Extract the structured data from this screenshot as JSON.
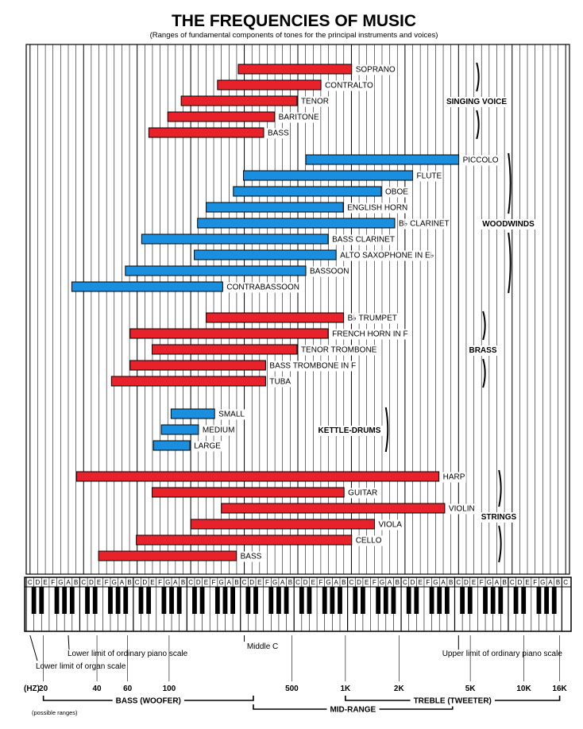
{
  "chart_data": {
    "type": "bar",
    "orientation": "horizontal-range",
    "title": "THE FREQUENCIES OF MUSIC",
    "subtitle": "(Ranges of fundamental components of tones for the principal instruments and voices)",
    "x_scale": "log",
    "x_unit": "(HZ)",
    "x_ticks": [
      {
        "value": 20,
        "label": "20"
      },
      {
        "value": 40,
        "label": "40"
      },
      {
        "value": 60,
        "label": "60"
      },
      {
        "value": 100,
        "label": "100"
      },
      {
        "value": 500,
        "label": "500"
      },
      {
        "value": 1000,
        "label": "1K"
      },
      {
        "value": 2000,
        "label": "2K"
      },
      {
        "value": 5000,
        "label": "5K"
      },
      {
        "value": 10000,
        "label": "10K"
      },
      {
        "value": 16000,
        "label": "16K"
      }
    ],
    "colors": {
      "red": "#e8222a",
      "blue": "#1a8fe0",
      "outline": "#000000"
    },
    "groups": [
      {
        "name": "SINGING VOICE",
        "instruments": [
          {
            "name": "SOPRANO",
            "low": 250,
            "high": 1050,
            "color": "red"
          },
          {
            "name": "CONTRALTO",
            "low": 185,
            "high": 700,
            "color": "red"
          },
          {
            "name": "TENOR",
            "low": 120,
            "high": 520,
            "color": "red"
          },
          {
            "name": "BARITONE",
            "low": 98,
            "high": 390,
            "color": "red"
          },
          {
            "name": "BASS",
            "low": 78,
            "high": 340,
            "color": "red"
          }
        ]
      },
      {
        "name": "WOODWINDS",
        "instruments": [
          {
            "name": "PICCOLO",
            "low": 590,
            "high": 4200,
            "color": "blue"
          },
          {
            "name": "FLUTE",
            "low": 260,
            "high": 2350,
            "color": "blue"
          },
          {
            "name": "OBOE",
            "low": 235,
            "high": 1550,
            "color": "blue"
          },
          {
            "name": "ENGLISH HORN",
            "low": 165,
            "high": 980,
            "color": "blue"
          },
          {
            "name": "B♭ CLARINET",
            "low": 145,
            "high": 1900,
            "color": "blue"
          },
          {
            "name": "BASS CLARINET",
            "low": 70,
            "high": 780,
            "color": "blue"
          },
          {
            "name": "ALTO SAXOPHONE IN E♭",
            "low": 138,
            "high": 880,
            "color": "blue"
          },
          {
            "name": "BASSOON",
            "low": 58,
            "high": 590,
            "color": "blue"
          },
          {
            "name": "CONTRABASSOON",
            "low": 29,
            "high": 200,
            "color": "blue"
          }
        ]
      },
      {
        "name": "BRASS",
        "instruments": [
          {
            "name": "B♭ TRUMPET",
            "low": 165,
            "high": 985,
            "color": "red"
          },
          {
            "name": "FRENCH HORN IN F",
            "low": 62,
            "high": 780,
            "color": "red"
          },
          {
            "name": "TENOR TROMBONE",
            "low": 82,
            "high": 520,
            "color": "red"
          },
          {
            "name": "BASS TROMBONE IN F",
            "low": 62,
            "high": 345,
            "color": "red"
          },
          {
            "name": "TUBA",
            "low": 47,
            "high": 345,
            "color": "red"
          }
        ]
      },
      {
        "name": "KETTLE-DRUMS",
        "instruments": [
          {
            "name": "SMALL",
            "low": 103,
            "high": 177,
            "color": "blue"
          },
          {
            "name": "MEDIUM",
            "low": 89,
            "high": 147,
            "color": "blue"
          },
          {
            "name": "LARGE",
            "low": 83,
            "high": 130,
            "color": "blue"
          }
        ]
      },
      {
        "name": "STRINGS",
        "instruments": [
          {
            "name": "HARP",
            "low": 31,
            "high": 3300,
            "color": "red"
          },
          {
            "name": "GUITAR",
            "low": 82,
            "high": 990,
            "color": "red"
          },
          {
            "name": "VIOLIN",
            "low": 196,
            "high": 3600,
            "color": "red"
          },
          {
            "name": "VIOLA",
            "low": 131,
            "high": 1400,
            "color": "red"
          },
          {
            "name": "CELLO",
            "low": 65,
            "high": 1050,
            "color": "red"
          },
          {
            "name": "BASS",
            "low": 41,
            "high": 246,
            "color": "red"
          }
        ]
      }
    ],
    "piano": {
      "note_letters": [
        "C",
        "D",
        "E",
        "F",
        "G",
        "A",
        "B"
      ],
      "last_note": "C"
    },
    "annotations": [
      {
        "text": "Lower limit of ordinary piano scale",
        "freq": 27.5
      },
      {
        "text": "Lower limit of organ scale",
        "freq": 16.35
      },
      {
        "text": "Middle C",
        "freq": 261.6
      },
      {
        "text": "Upper limit of ordinary piano scale",
        "freq": 4186
      }
    ],
    "ranges": [
      {
        "label": "BASS (WOOFER)",
        "low": 20,
        "high": 300
      },
      {
        "label": "MID-RANGE",
        "low": 300,
        "high": 4000
      },
      {
        "label": "TREBLE (TWEETER)",
        "low": 1000,
        "high": 16000
      }
    ],
    "footnote": "(possible ranges)"
  }
}
